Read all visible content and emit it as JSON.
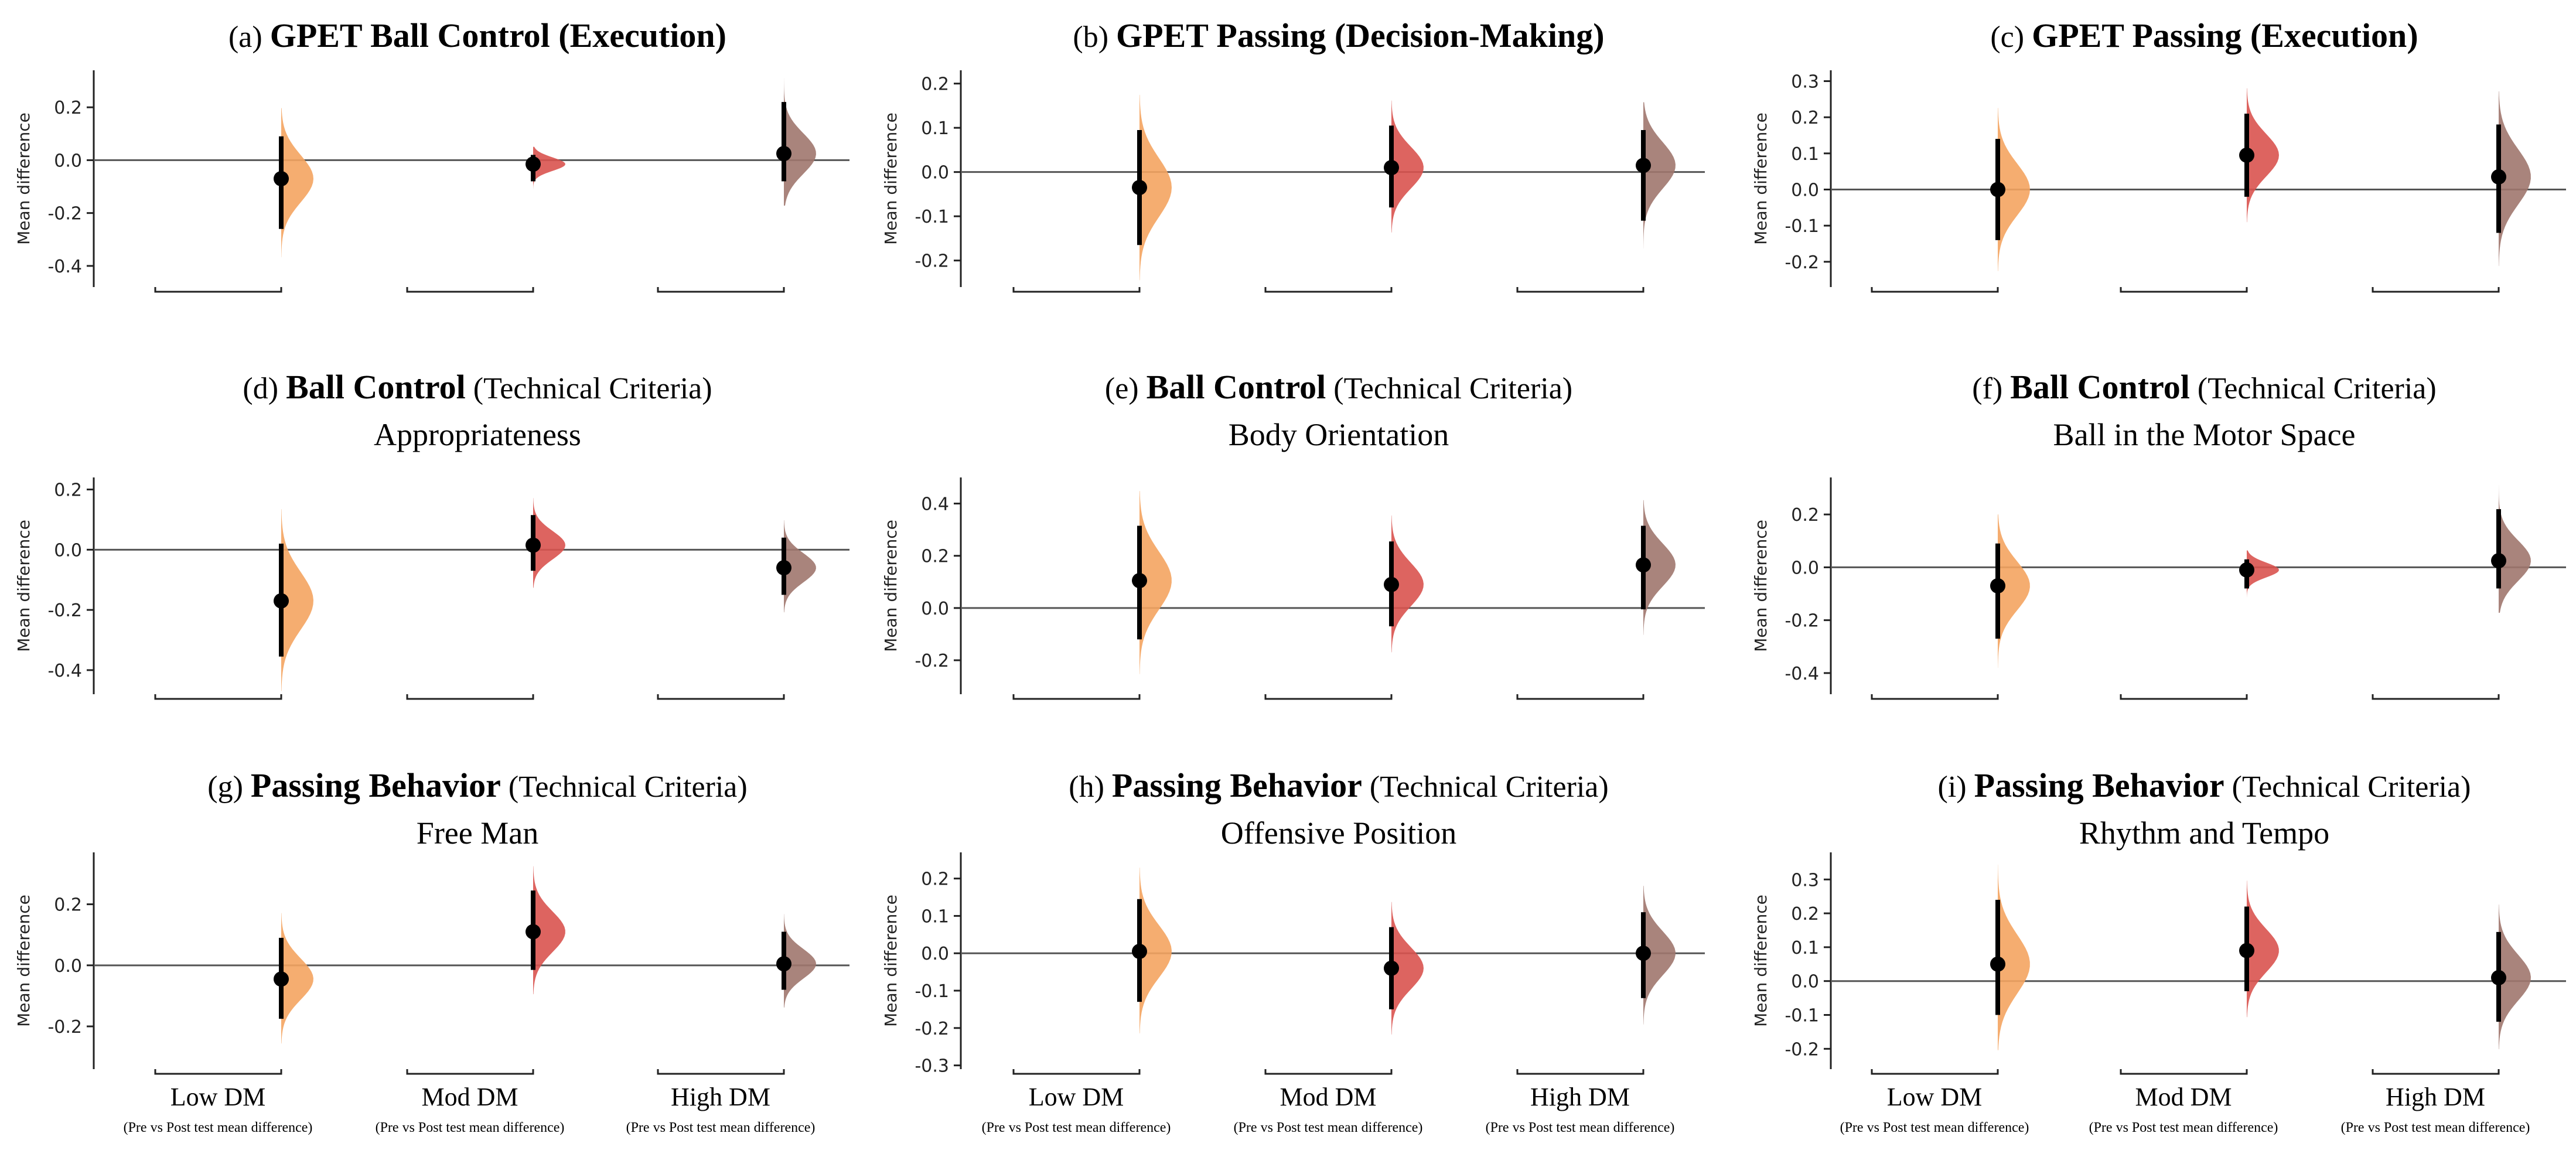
{
  "colors": {
    "low": "#F4A460",
    "mod": "#D9534F",
    "high": "#A0776E",
    "axis": "#222222",
    "zero": "#555555",
    "point": "#000000"
  },
  "figure": {
    "bottom_groups": [
      "Low DM",
      "Mod DM",
      "High DM"
    ],
    "bottom_sublabel": "(Pre vs Post test mean difference)"
  },
  "chart_data": [
    {
      "type": "estimation",
      "panel_letter": "(a)",
      "title_bold": "GPET Ball Control (Execution)",
      "title_normal": "",
      "subtitle": "",
      "ylabel": "Mean difference",
      "ylim": [
        -0.48,
        0.34
      ],
      "yticks": [
        0.2,
        0.0,
        -0.2,
        -0.4
      ],
      "tick_decimals": 1,
      "categories": [
        "Low DM",
        "Mod DM",
        "High DM"
      ],
      "values": [
        -0.07,
        -0.015,
        0.025
      ],
      "ci": [
        [
          -0.26,
          0.09
        ],
        [
          -0.08,
          0.02
        ],
        [
          -0.08,
          0.22
        ]
      ]
    },
    {
      "type": "estimation",
      "panel_letter": "(b)",
      "title_bold": "GPET Passing (Decision-Making)",
      "title_normal": "",
      "subtitle": "",
      "ylabel": "Mean difference",
      "ylim": [
        -0.26,
        0.23
      ],
      "yticks": [
        0.2,
        0.1,
        0.0,
        -0.1,
        -0.2
      ],
      "tick_decimals": 1,
      "categories": [
        "Low DM",
        "Mod DM",
        "High DM"
      ],
      "values": [
        -0.035,
        0.01,
        0.015
      ],
      "ci": [
        [
          -0.165,
          0.095
        ],
        [
          -0.08,
          0.105
        ],
        [
          -0.11,
          0.095
        ]
      ]
    },
    {
      "type": "estimation",
      "panel_letter": "(c)",
      "title_bold": "GPET Passing (Execution)",
      "title_normal": "",
      "subtitle": "",
      "ylabel": "Mean difference",
      "ylim": [
        -0.27,
        0.33
      ],
      "yticks": [
        0.3,
        0.2,
        0.1,
        0.0,
        -0.1,
        -0.2
      ],
      "tick_decimals": 1,
      "categories": [
        "Low DM",
        "Mod DM",
        "High DM"
      ],
      "values": [
        0.0,
        0.095,
        0.035
      ],
      "ci": [
        [
          -0.14,
          0.14
        ],
        [
          -0.02,
          0.21
        ],
        [
          -0.12,
          0.18
        ]
      ]
    },
    {
      "type": "estimation",
      "panel_letter": "(d)",
      "title_bold": "Ball Control",
      "title_normal": "(Technical Criteria)",
      "subtitle": "Appropriateness",
      "ylabel": "Mean difference",
      "ylim": [
        -0.48,
        0.24
      ],
      "yticks": [
        0.2,
        0.0,
        -0.2,
        -0.4
      ],
      "tick_decimals": 1,
      "categories": [
        "Low DM",
        "Mod DM",
        "High DM"
      ],
      "values": [
        -0.17,
        0.015,
        -0.06
      ],
      "ci": [
        [
          -0.355,
          0.02
        ],
        [
          -0.07,
          0.115
        ],
        [
          -0.15,
          0.04
        ]
      ]
    },
    {
      "type": "estimation",
      "panel_letter": "(e)",
      "title_bold": "Ball Control",
      "title_normal": "(Technical Criteria)",
      "subtitle": "Body Orientation",
      "ylabel": "Mean difference",
      "ylim": [
        -0.33,
        0.5
      ],
      "yticks": [
        0.4,
        0.2,
        0.0,
        -0.2
      ],
      "tick_decimals": 1,
      "categories": [
        "Low DM",
        "Mod DM",
        "High DM"
      ],
      "values": [
        0.105,
        0.09,
        0.165
      ],
      "ci": [
        [
          -0.12,
          0.315
        ],
        [
          -0.07,
          0.255
        ],
        [
          -0.005,
          0.315
        ]
      ]
    },
    {
      "type": "estimation",
      "panel_letter": "(f)",
      "title_bold": "Ball Control",
      "title_normal": "(Technical Criteria)",
      "subtitle": "Ball in the Motor Space",
      "ylabel": "Mean difference",
      "ylim": [
        -0.48,
        0.34
      ],
      "yticks": [
        0.2,
        0.0,
        -0.2,
        -0.4
      ],
      "tick_decimals": 1,
      "categories": [
        "Low DM",
        "Mod DM",
        "High DM"
      ],
      "values": [
        -0.07,
        -0.01,
        0.025
      ],
      "ci": [
        [
          -0.27,
          0.09
        ],
        [
          -0.08,
          0.03
        ],
        [
          -0.08,
          0.22
        ]
      ]
    },
    {
      "type": "estimation",
      "panel_letter": "(g)",
      "title_bold": "Passing Behavior",
      "title_normal": "(Technical Criteria)",
      "subtitle": "Free Man",
      "ylabel": "Mean difference",
      "ylim": [
        -0.34,
        0.37
      ],
      "yticks": [
        0.2,
        0.0,
        -0.2
      ],
      "tick_decimals": 1,
      "categories": [
        "Low DM",
        "Mod DM",
        "High DM"
      ],
      "values": [
        -0.045,
        0.11,
        0.005
      ],
      "ci": [
        [
          -0.175,
          0.09
        ],
        [
          -0.015,
          0.245
        ],
        [
          -0.08,
          0.11
        ]
      ]
    },
    {
      "type": "estimation",
      "panel_letter": "(h)",
      "title_bold": "Passing Behavior",
      "title_normal": "(Technical Criteria)",
      "subtitle": "Offensive Position",
      "ylabel": "Mean difference",
      "ylim": [
        -0.31,
        0.27
      ],
      "yticks": [
        0.2,
        0.1,
        0.0,
        -0.1,
        -0.2,
        -0.3
      ],
      "tick_decimals": 1,
      "categories": [
        "Low DM",
        "Mod DM",
        "High DM"
      ],
      "values": [
        0.005,
        -0.04,
        0.0
      ],
      "ci": [
        [
          -0.13,
          0.145
        ],
        [
          -0.15,
          0.07
        ],
        [
          -0.12,
          0.11
        ]
      ]
    },
    {
      "type": "estimation",
      "panel_letter": "(i)",
      "title_bold": "Passing Behavior",
      "title_normal": "(Technical Criteria)",
      "subtitle": "Rhythm and Tempo",
      "ylabel": "Mean difference",
      "ylim": [
        -0.26,
        0.38
      ],
      "yticks": [
        0.3,
        0.2,
        0.1,
        0.0,
        -0.1,
        -0.2
      ],
      "tick_decimals": 1,
      "categories": [
        "Low DM",
        "Mod DM",
        "High DM"
      ],
      "values": [
        0.05,
        0.09,
        0.01
      ],
      "ci": [
        [
          -0.1,
          0.24
        ],
        [
          -0.03,
          0.22
        ],
        [
          -0.12,
          0.145
        ]
      ]
    }
  ]
}
